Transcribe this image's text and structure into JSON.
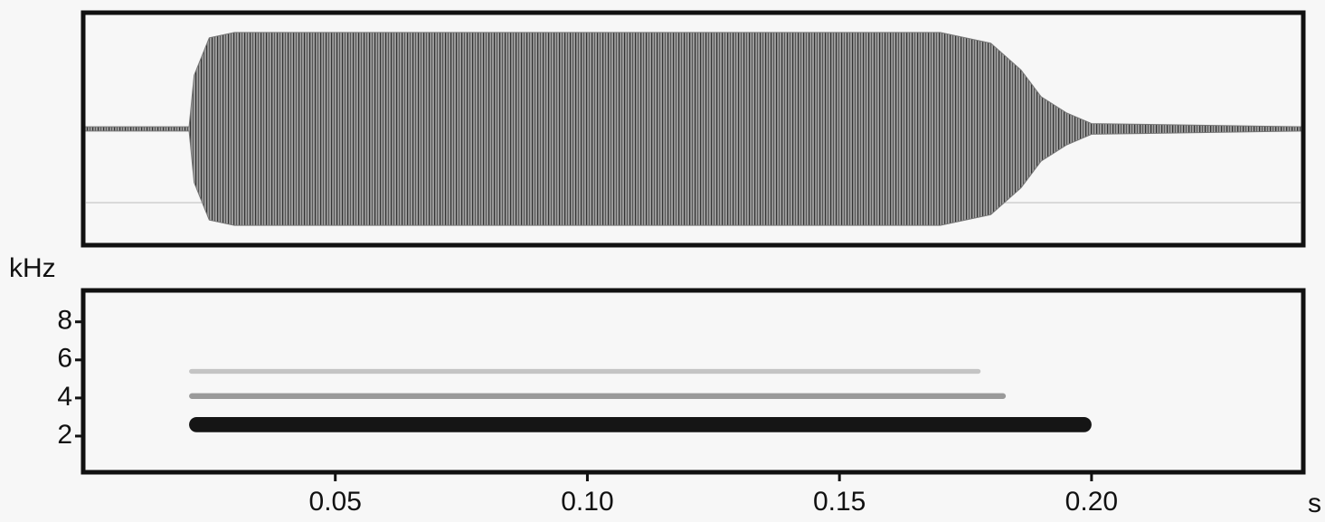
{
  "chart_data": [
    {
      "type": "waveform",
      "xlim": [
        0,
        0.242
      ],
      "ylim": [
        -1,
        1
      ],
      "x": [
        0,
        0.021,
        0.022,
        0.025,
        0.03,
        0.17,
        0.18,
        0.186,
        0.19,
        0.195,
        0.2,
        0.242
      ],
      "values": [
        0.02,
        0.02,
        0.5,
        0.85,
        0.9,
        0.9,
        0.8,
        0.55,
        0.3,
        0.15,
        0.05,
        0.02
      ],
      "color": "#777777"
    },
    {
      "type": "spectrogram",
      "y_label": "kHz",
      "x_label": "s",
      "xlim": [
        0,
        0.242
      ],
      "ylim": [
        0.1,
        9.65
      ],
      "yticks": [
        2,
        4,
        6,
        8
      ],
      "xticks": [
        0.05,
        {
          "value": 0.1,
          "label": "0.10"
        },
        0.15,
        {
          "value": 0.2,
          "label": "0.20"
        }
      ],
      "bands": [
        {
          "start": 0.021,
          "end": 0.2,
          "freq": 2.6,
          "width": 0.8,
          "color": "#151515"
        },
        {
          "start": 0.021,
          "end": 0.183,
          "freq": 4.1,
          "width": 0.3,
          "color": "#9a9a9a"
        },
        {
          "start": 0.021,
          "end": 0.178,
          "freq": 5.4,
          "width": 0.25,
          "color": "#c4c4c4"
        }
      ]
    }
  ]
}
